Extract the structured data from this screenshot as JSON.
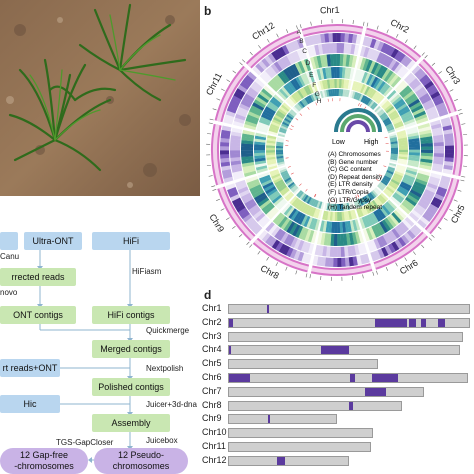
{
  "panel_b_label": "b",
  "panel_d_label": "d",
  "flowchart": {
    "ultra_ont": "Ultra-ONT",
    "hifi": "HiFi",
    "canu": "Canu",
    "corrected_reads": "rrected reads",
    "denovo": "novo",
    "hifiasm": "HiFiasm",
    "ont_contigs": "ONT contigs",
    "hifi_contigs": "HiFi contigs",
    "quickmerge": "Quickmerge",
    "merged_contigs": "Merged contigs",
    "short_reads": "rt reads+ONT",
    "nextpolish": "Nextpolish",
    "polished_contigs": "Polished contigs",
    "juicer": "Juicer+3d-dna",
    "hic": "Hic",
    "assembly": "Assembly",
    "juicebox": "Juicebox",
    "tgs": "TGS-GapCloser",
    "gapfree": "12 Gap-free\n-chromosomes",
    "pseudo": "12 Pseudo-\nchromosomes"
  },
  "circos": {
    "track_letters": [
      "A",
      "B",
      "C",
      "D",
      "E",
      "F",
      "G",
      "H"
    ],
    "chromosomes": [
      "Chr1",
      "Chr2",
      "Chr3",
      "Chr4",
      "Chr5",
      "Chr6",
      "Chr7",
      "Chr8",
      "Chr9",
      "Chr10",
      "Chr11",
      "Chr12"
    ],
    "visible_chr_labels": [
      "Chr12",
      "Chr11",
      "Chr1",
      "Chr10",
      "Chr9",
      "Chr8",
      "Chr7",
      "Chr6",
      "Chr5"
    ],
    "legend_low": "Low",
    "legend_high": "High",
    "legend_items": [
      "(A) Chromosomes",
      "(B) Gene number",
      "(C) GC content",
      "(D) Repeat density",
      "(E) LTR density",
      "(F) LTR/Copia",
      "(G) LTR/Gypsy",
      "(H) Tandem repeat"
    ],
    "colors": {
      "chromosome_ring": "#d774c7",
      "dark": "#1f5f8b",
      "mid": "#4aa8a8",
      "light": "#e6f2c0",
      "purple": "#6a4aa8"
    }
  },
  "chromosome_bars": [
    {
      "label": "Chr1",
      "frac": 1.0,
      "segs": [
        [
          0.16,
          0.162
        ]
      ]
    },
    {
      "label": "Chr2",
      "frac": 1.0,
      "segs": [
        [
          0.0,
          0.015
        ],
        [
          0.61,
          0.74
        ],
        [
          0.75,
          0.78
        ],
        [
          0.8,
          0.82
        ],
        [
          0.87,
          0.9
        ]
      ]
    },
    {
      "label": "Chr3",
      "frac": 0.97,
      "segs": []
    },
    {
      "label": "Chr4",
      "frac": 0.96,
      "segs": [
        [
          0.0,
          0.01
        ],
        [
          0.4,
          0.408
        ],
        [
          0.41,
          0.52
        ]
      ]
    },
    {
      "label": "Chr5",
      "frac": 0.62,
      "segs": []
    },
    {
      "label": "Chr6",
      "frac": 0.99,
      "segs": [
        [
          0.0,
          0.09
        ],
        [
          0.51,
          0.53
        ],
        [
          0.6,
          0.71
        ]
      ]
    },
    {
      "label": "Chr7",
      "frac": 0.81,
      "segs": [
        [
          0.7,
          0.81
        ]
      ]
    },
    {
      "label": "Chr8",
      "frac": 0.72,
      "segs": [
        [
          0.7,
          0.72
        ]
      ]
    },
    {
      "label": "Chr9",
      "frac": 0.45,
      "segs": [
        [
          0.36,
          0.38
        ]
      ]
    },
    {
      "label": "Chr10",
      "frac": 0.6,
      "segs": []
    },
    {
      "label": "Chr11",
      "frac": 0.59,
      "segs": []
    },
    {
      "label": "Chr12",
      "frac": 0.5,
      "segs": [
        [
          0.4,
          0.47
        ]
      ]
    }
  ]
}
